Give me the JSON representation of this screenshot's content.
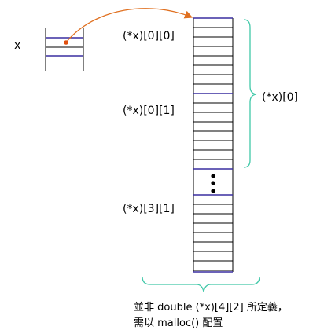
{
  "pointer": {
    "name": "x"
  },
  "labels": {
    "first_elem": "(*x)[0][0]",
    "second_elem": "(*x)[0][1]",
    "last_elem": "(*x)[3][1]",
    "first_block": "(*x)[0]"
  },
  "note": {
    "line1": "並非 double (*x)[4][2] 所定義，",
    "line2": "需以 malloc() 配置"
  },
  "colors": {
    "block_divider": "#3a2ea0",
    "arrow": "#e07020",
    "brace": "#40c8a8",
    "grid_line": "#000000"
  }
}
